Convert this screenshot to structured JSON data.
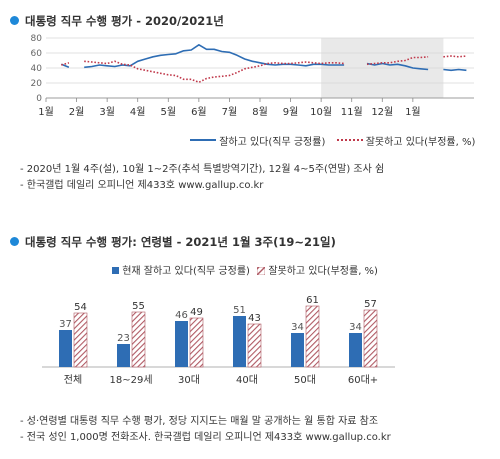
{
  "chart1": {
    "title": "대통령 직무 수행 평가 - 2020/2021년",
    "legend_positive": "잘하고 있다(직무 긍정률)",
    "legend_negative": "잘못하고 있다(부정률, %)",
    "note1": "- 2020년 1월 4주(설), 10월 1~2주(추석 특별방역기간), 12월 4~5주(연말) 조사 쉼",
    "note2": "- 한국갤럽 데일리 오피니언 제433호 www.gallup.co.kr",
    "colors": {
      "positive": "#2e6db4",
      "negative": "#c0394b",
      "shade": "#e9e9e9"
    }
  },
  "chart2": {
    "title": "대통령 직무 수행 평가: 연령별 - 2021년 1월 3주(19~21일)",
    "legend_positive": "현재 잘하고 있다(직무 긍정률)",
    "legend_negative": "잘못하고 있다(부정률, %)",
    "note1": "- 성·연령별 대통령 직무 수행 평가, 정당 지지도는 매월 말 공개하는 월 통합 자료 참조",
    "note2": "- 전국 성인 1,000명 전화조사. 한국갤럽 데일리 오피니언 제433호 www.gallup.co.kr",
    "colors": {
      "positive": "#2e6db4",
      "negative": "#b05a64"
    }
  },
  "chart_data": [
    {
      "type": "line",
      "title": "대통령 직무 수행 평가 - 2020/2021년",
      "xlabel": "",
      "ylabel": "",
      "ylim": [
        0,
        80
      ],
      "y_ticks": [
        0,
        20,
        40,
        60,
        80
      ],
      "x_tick_labels": [
        "1월",
        "2월",
        "3월",
        "4월",
        "5월",
        "6월",
        "7월",
        "8월",
        "9월",
        "10월",
        "11월",
        "12월",
        "1월"
      ],
      "grid": true,
      "legend_position": "bottom",
      "shaded_period": [
        9,
        13
      ],
      "series": [
        {
          "name": "잘하고 있다(직무 긍정률)",
          "style": "solid",
          "points": [
            [
              0.5,
              45
            ],
            [
              0.75,
              41
            ],
            null,
            [
              1.25,
              41
            ],
            [
              1.5,
              42
            ],
            [
              1.75,
              44
            ],
            [
              2.0,
              43
            ],
            [
              2.25,
              42
            ],
            [
              2.5,
              44
            ],
            [
              2.75,
              43
            ],
            [
              3.0,
              49
            ],
            [
              3.25,
              52
            ],
            [
              3.5,
              55
            ],
            [
              3.75,
              57
            ],
            [
              4.0,
              58
            ],
            [
              4.25,
              59
            ],
            [
              4.5,
              63
            ],
            [
              4.75,
              64
            ],
            [
              5.0,
              71
            ],
            [
              5.25,
              65
            ],
            [
              5.5,
              65
            ],
            [
              5.75,
              62
            ],
            [
              6.0,
              61
            ],
            [
              6.25,
              57
            ],
            [
              6.5,
              52
            ],
            [
              6.75,
              49
            ],
            [
              7.0,
              47
            ],
            [
              7.25,
              45
            ],
            [
              7.5,
              44
            ],
            [
              7.75,
              45
            ],
            [
              8.0,
              45
            ],
            [
              8.25,
              44
            ],
            [
              8.5,
              43
            ],
            [
              8.75,
              45
            ],
            [
              9.0,
              45
            ],
            [
              9.25,
              44
            ],
            [
              9.5,
              44
            ],
            [
              9.75,
              44
            ],
            null,
            [
              10.5,
              46
            ],
            [
              10.75,
              44
            ],
            [
              11.0,
              46
            ],
            [
              11.25,
              44
            ],
            [
              11.5,
              45
            ],
            [
              11.75,
              43
            ],
            [
              12.0,
              40
            ],
            [
              12.25,
              39
            ],
            [
              12.5,
              38
            ],
            null,
            [
              13.0,
              38
            ],
            [
              13.25,
              37
            ],
            [
              13.5,
              38
            ],
            [
              13.75,
              37
            ]
          ]
        },
        {
          "name": "잘못하고 있다(부정률, %)",
          "style": "dotted",
          "points": [
            [
              0.5,
              44
            ],
            [
              0.75,
              47
            ],
            null,
            [
              1.25,
              49
            ],
            [
              1.5,
              48
            ],
            [
              1.75,
              47
            ],
            [
              2.0,
              46
            ],
            [
              2.25,
              49
            ],
            [
              2.5,
              45
            ],
            [
              2.75,
              44
            ],
            [
              3.0,
              39
            ],
            [
              3.25,
              37
            ],
            [
              3.5,
              35
            ],
            [
              3.75,
              33
            ],
            [
              4.0,
              31
            ],
            [
              4.25,
              30
            ],
            [
              4.5,
              25
            ],
            [
              4.75,
              25
            ],
            [
              5.0,
              21
            ],
            [
              5.25,
              26
            ],
            [
              5.5,
              28
            ],
            [
              5.75,
              29
            ],
            [
              6.0,
              30
            ],
            [
              6.25,
              34
            ],
            [
              6.5,
              39
            ],
            [
              6.75,
              41
            ],
            [
              7.0,
              43
            ],
            [
              7.25,
              46
            ],
            [
              7.5,
              47
            ],
            [
              7.75,
              46
            ],
            [
              8.0,
              46
            ],
            [
              8.25,
              47
            ],
            [
              8.5,
              48
            ],
            [
              8.75,
              47
            ],
            [
              9.0,
              46
            ],
            [
              9.25,
              47
            ],
            [
              9.5,
              47
            ],
            [
              9.75,
              46
            ],
            null,
            [
              10.5,
              45
            ],
            [
              10.75,
              46
            ],
            [
              11.0,
              47
            ],
            [
              11.25,
              47
            ],
            [
              11.5,
              49
            ],
            [
              11.75,
              50
            ],
            [
              12.0,
              54
            ],
            [
              12.25,
              54
            ],
            [
              12.5,
              55
            ],
            null,
            [
              13.0,
              55
            ],
            [
              13.25,
              56
            ],
            [
              13.5,
              55
            ],
            [
              13.75,
              56
            ]
          ]
        }
      ]
    },
    {
      "type": "bar",
      "title": "대통령 직무 수행 평가: 연령별 - 2021년 1월 3주(19~21일)",
      "categories": [
        "전체",
        "18~29세",
        "30대",
        "40대",
        "50대",
        "60대+"
      ],
      "legend_position": "top",
      "series": [
        {
          "name": "현재 잘하고 있다(직무 긍정률)",
          "values": [
            37,
            23,
            46,
            51,
            34,
            34
          ]
        },
        {
          "name": "잘못하고 있다(부정률, %)",
          "values": [
            54,
            55,
            49,
            43,
            61,
            57
          ]
        }
      ]
    }
  ]
}
